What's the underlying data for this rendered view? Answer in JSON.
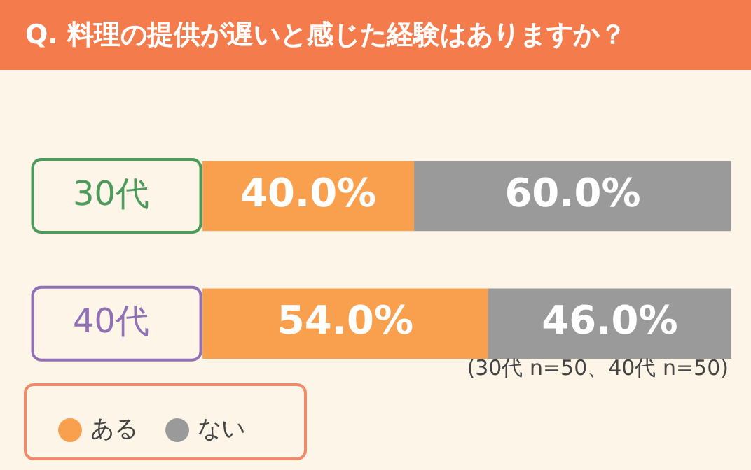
{
  "chart_data": {
    "type": "bar",
    "title": "Q. 料理の提供が遅いと感じた経験はありますか？",
    "orientation": "horizontal",
    "stacked": true,
    "categories": [
      "30代",
      "40代"
    ],
    "series": [
      {
        "name": "ある",
        "color": "#f9a04e",
        "values": [
          40.0,
          54.0
        ],
        "value_labels": [
          "40.0%",
          "54.0%"
        ]
      },
      {
        "name": "ない",
        "color": "#9a9a9a",
        "values": [
          60.0,
          46.0
        ],
        "value_labels": [
          "60.0%",
          "46.0%"
        ]
      }
    ],
    "tick_labels": "y",
    "legend": "bottom left",
    "annotations": [
      "(30代 n=50、40代 n=50)"
    ]
  }
}
